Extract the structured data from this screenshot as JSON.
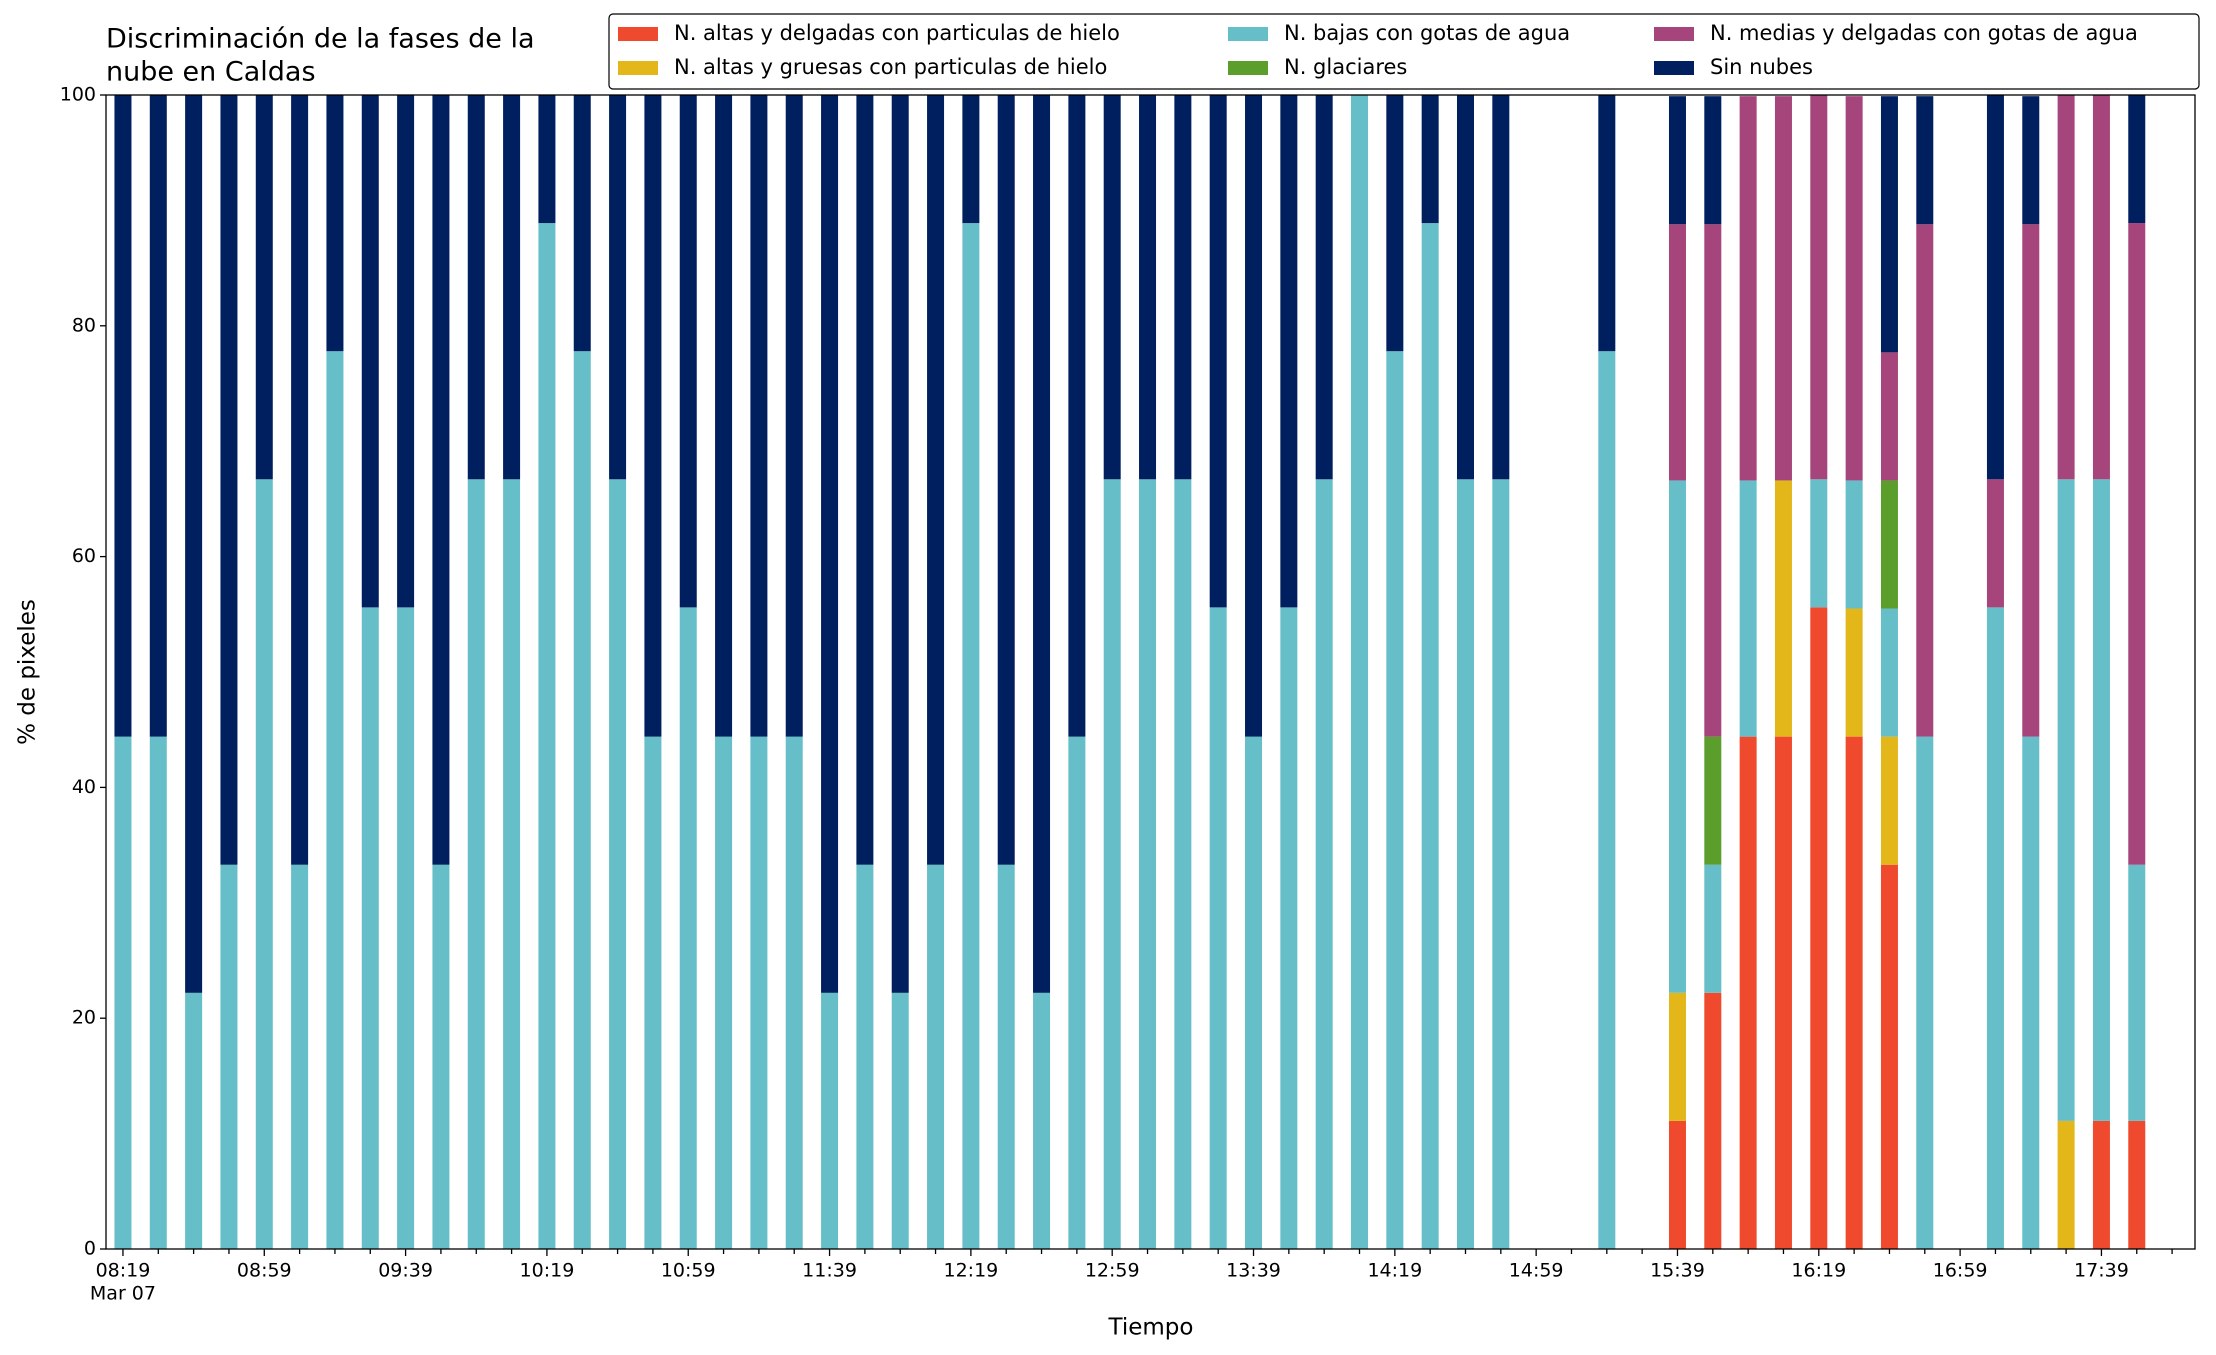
{
  "chart_data": {
    "type": "stacked_bar",
    "title": [
      "Discriminación de la fases de la",
      "nube en Caldas"
    ],
    "x_label": "Tiempo",
    "y_label": "% de pixeles",
    "x_sublabel": "Mar 07",
    "categories": [
      "08:19",
      null,
      null,
      null,
      "08:59",
      null,
      null,
      null,
      "09:39",
      null,
      null,
      null,
      "10:19",
      null,
      null,
      null,
      "10:59",
      null,
      null,
      null,
      "11:39",
      null,
      null,
      null,
      "12:19",
      null,
      null,
      null,
      "12:59",
      null,
      null,
      null,
      "13:39",
      null,
      null,
      null,
      "14:19",
      null,
      null,
      null,
      "14:59",
      null,
      null,
      null,
      "15:39",
      null,
      null,
      null,
      "16:19",
      null,
      null,
      null,
      "16:59",
      null,
      null,
      null,
      "17:39",
      null
    ],
    "ylim": [
      0,
      100
    ],
    "yticks": [
      0,
      20,
      40,
      60,
      80,
      100
    ],
    "legend": "top",
    "series": [
      {
        "name": "N. altas y delgadas con particulas de hielo",
        "color": "#ef4a2e",
        "values": [
          0,
          0,
          0,
          0,
          0,
          0,
          0,
          0,
          0,
          0,
          0,
          0,
          0,
          0,
          0,
          0,
          0,
          0,
          0,
          0,
          0,
          0,
          0,
          0,
          0,
          0,
          0,
          0,
          0,
          0,
          0,
          0,
          0,
          0,
          0,
          0,
          0,
          0,
          0,
          0,
          null,
          null,
          0,
          null,
          11.1,
          22.2,
          44.4,
          44.4,
          55.6,
          44.4,
          33.3,
          0,
          null,
          0,
          0,
          0,
          11.1,
          11.1
        ]
      },
      {
        "name": "N. altas y gruesas con particulas de hielo",
        "color": "#e3b619",
        "values": [
          0,
          0,
          0,
          0,
          0,
          0,
          0,
          0,
          0,
          0,
          0,
          0,
          0,
          0,
          0,
          0,
          0,
          0,
          0,
          0,
          0,
          0,
          0,
          0,
          0,
          0,
          0,
          0,
          0,
          0,
          0,
          0,
          0,
          0,
          0,
          0,
          0,
          0,
          0,
          0,
          null,
          null,
          0,
          null,
          11.1,
          0,
          0,
          22.2,
          0,
          11.1,
          11.1,
          0,
          null,
          0,
          0,
          11.1,
          0,
          0
        ]
      },
      {
        "name": "N. bajas con gotas de agua",
        "color": "#66bec9",
        "values": [
          44.4,
          44.4,
          22.2,
          33.3,
          66.7,
          33.3,
          77.8,
          55.6,
          55.6,
          33.3,
          66.7,
          66.7,
          88.9,
          77.8,
          66.7,
          44.4,
          55.6,
          44.4,
          44.4,
          44.4,
          22.2,
          33.3,
          22.2,
          33.3,
          88.9,
          33.3,
          22.2,
          44.4,
          66.7,
          66.7,
          66.7,
          55.6,
          44.4,
          55.6,
          66.7,
          100,
          77.8,
          88.9,
          66.7,
          66.7,
          null,
          null,
          77.8,
          null,
          44.4,
          11.1,
          22.2,
          0,
          11.1,
          11.1,
          11.1,
          44.4,
          null,
          55.6,
          44.4,
          55.6,
          55.6,
          22.2
        ]
      },
      {
        "name": "N. glaciares",
        "color": "#5b9e2c",
        "values": [
          0,
          0,
          0,
          0,
          0,
          0,
          0,
          0,
          0,
          0,
          0,
          0,
          0,
          0,
          0,
          0,
          0,
          0,
          0,
          0,
          0,
          0,
          0,
          0,
          0,
          0,
          0,
          0,
          0,
          0,
          0,
          0,
          0,
          0,
          0,
          0,
          0,
          0,
          0,
          0,
          null,
          null,
          0,
          null,
          0,
          11.1,
          0,
          0,
          0,
          0,
          11.1,
          0,
          null,
          0,
          0,
          0,
          0,
          0
        ]
      },
      {
        "name": "N. medias y delgadas con gotas de agua",
        "color": "#a5457b",
        "values": [
          0,
          0,
          0,
          0,
          0,
          0,
          0,
          0,
          0,
          0,
          0,
          0,
          0,
          0,
          0,
          0,
          0,
          0,
          0,
          0,
          0,
          0,
          0,
          0,
          0,
          0,
          0,
          0,
          0,
          0,
          0,
          0,
          0,
          0,
          0,
          0,
          0,
          0,
          0,
          0,
          null,
          null,
          0,
          null,
          22.2,
          44.4,
          33.3,
          33.3,
          33.3,
          33.3,
          11.1,
          44.4,
          null,
          11.1,
          44.4,
          33.3,
          33.3,
          55.6
        ]
      },
      {
        "name": "Sin nubes",
        "color": "#001f5f",
        "values": [
          55.6,
          55.6,
          77.8,
          66.7,
          33.3,
          66.7,
          22.2,
          44.4,
          44.4,
          66.7,
          33.3,
          33.3,
          11.1,
          22.2,
          33.3,
          55.6,
          44.4,
          55.6,
          55.6,
          55.6,
          77.8,
          66.7,
          77.8,
          66.7,
          11.1,
          66.7,
          77.8,
          55.6,
          33.3,
          33.3,
          33.3,
          44.4,
          55.6,
          44.4,
          33.3,
          0,
          22.2,
          11.1,
          33.3,
          33.3,
          null,
          null,
          22.2,
          null,
          11.1,
          11.1,
          0,
          0,
          0,
          0,
          22.2,
          11.1,
          null,
          33.3,
          11.1,
          0,
          0,
          11.1
        ]
      }
    ]
  }
}
